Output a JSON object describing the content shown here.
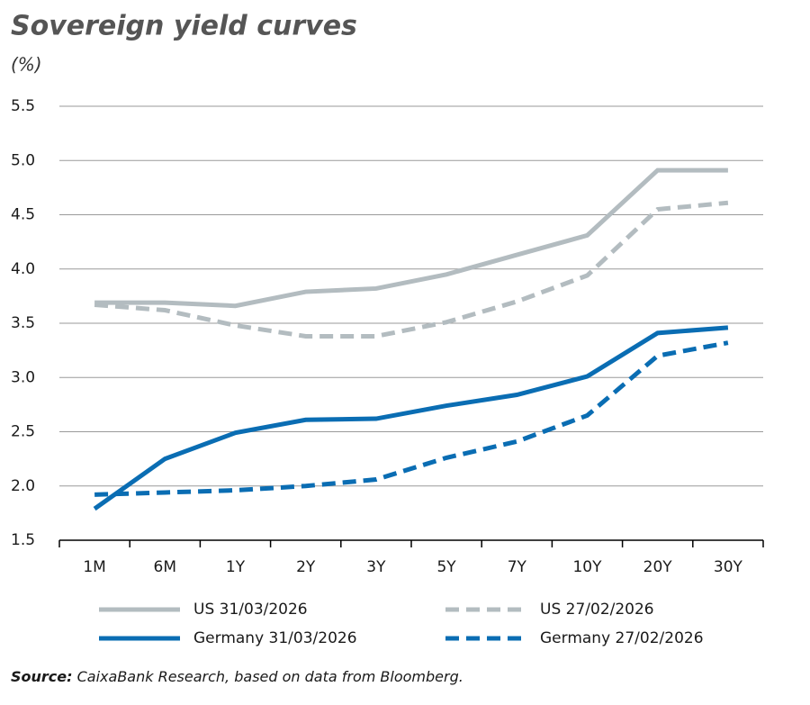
{
  "chart_data": {
    "type": "line",
    "title": "Sovereign yield curves",
    "subtitle": "(%)",
    "categories": [
      "1M",
      "6M",
      "1Y",
      "2Y",
      "3Y",
      "5Y",
      "7Y",
      "10Y",
      "20Y",
      "30Y"
    ],
    "series": [
      {
        "name": "US 31/03/2026",
        "color": "#b3bcc0",
        "dashed": false,
        "values": [
          3.69,
          3.69,
          3.66,
          3.79,
          3.82,
          3.95,
          4.13,
          4.31,
          4.91,
          4.91
        ]
      },
      {
        "name": "US 27/02/2026",
        "color": "#b3bcc0",
        "dashed": true,
        "values": [
          3.67,
          3.62,
          3.48,
          3.38,
          3.38,
          3.51,
          3.7,
          3.94,
          4.55,
          4.61
        ]
      },
      {
        "name": "Germany 31/03/2026",
        "color": "#0a6db3",
        "dashed": false,
        "values": [
          1.79,
          2.25,
          2.49,
          2.61,
          2.62,
          2.74,
          2.84,
          3.01,
          3.41,
          3.46
        ]
      },
      {
        "name": "Germany 27/02/2026",
        "color": "#0a6db3",
        "dashed": true,
        "values": [
          1.92,
          1.94,
          1.96,
          2.0,
          2.06,
          2.26,
          2.41,
          2.65,
          3.2,
          3.32
        ]
      }
    ],
    "ylim": [
      1.5,
      5.5
    ],
    "yticks": [
      1.5,
      {
        "value": 2,
        "label": "2.0"
      },
      2.5,
      {
        "value": 3,
        "label": "3.0"
      },
      3.5,
      {
        "value": 4,
        "label": "4.0"
      },
      4.5,
      {
        "value": 5,
        "label": "5.0"
      },
      5.5
    ],
    "grid": true,
    "legend_position": "bottom",
    "source_label": "Source:",
    "source_text": "CaixaBank Research, based on data from Bloomberg."
  }
}
